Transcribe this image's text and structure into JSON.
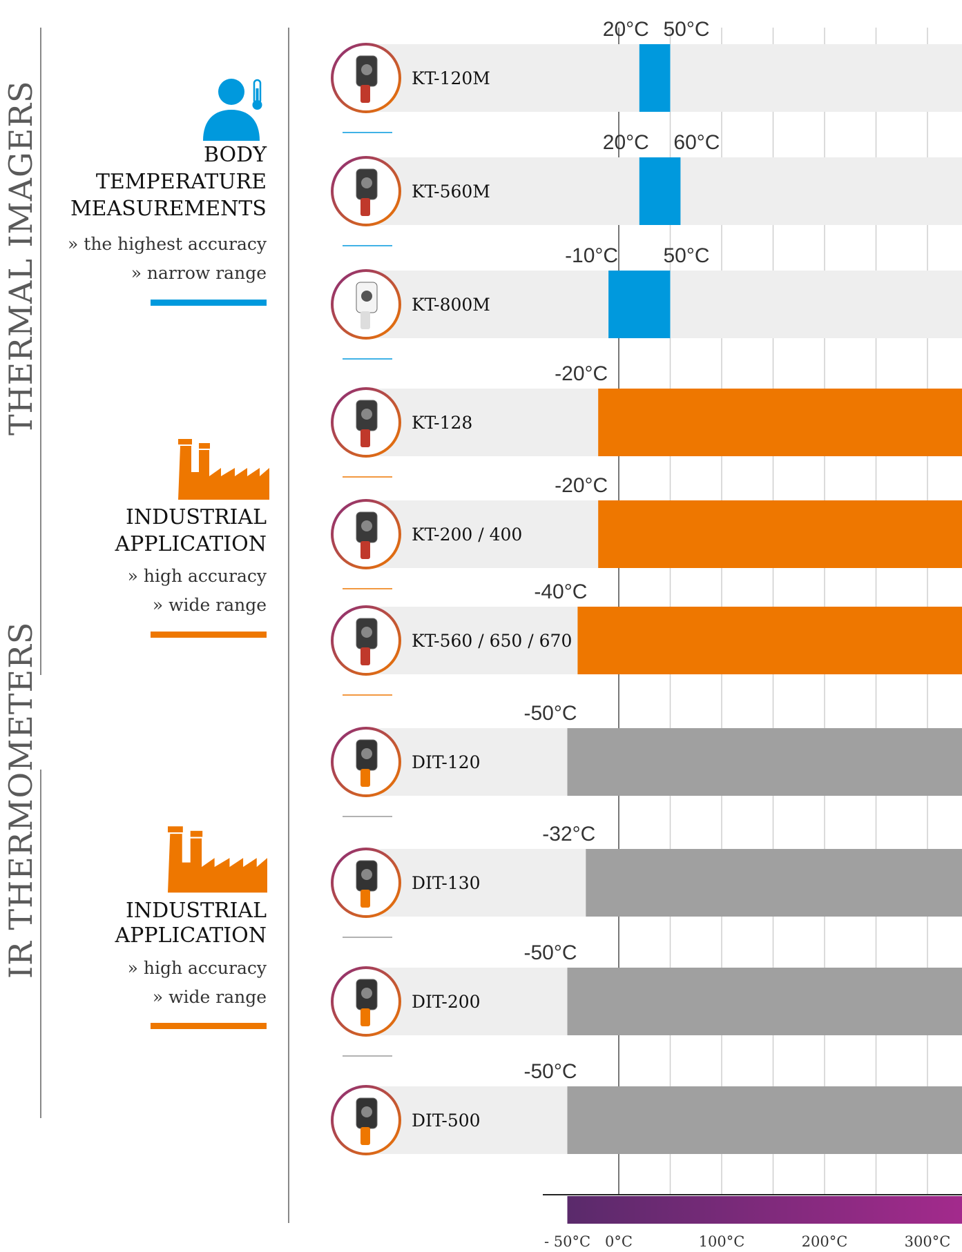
{
  "groups": [
    {
      "title": "THERMAL IMAGERS"
    },
    {
      "title": "IR THERMOMETERS"
    }
  ],
  "sections": [
    {
      "heading": "BODY TEMPERATURE MEASUREMENTS",
      "heading_lines": [
        "BODY",
        "TEMPERATURE",
        "MEASUREMENTS"
      ],
      "bullets": [
        "» the highest accuracy",
        "» narrow range"
      ],
      "icon": "person-thermometer-icon",
      "color": "#0099dd"
    },
    {
      "heading": "INDUSTRIAL APPLICATION",
      "heading_lines": [
        "INDUSTRIAL",
        "APPLICATION"
      ],
      "bullets": [
        "» high accuracy",
        "» wide range"
      ],
      "icon": "factory-icon",
      "color": "#ee7700"
    },
    {
      "heading": "INDUSTRIAL APPLICATION",
      "heading_lines": [
        "INDUSTRIAL",
        "APPLICATION"
      ],
      "bullets": [
        "» high accuracy",
        "» wide range"
      ],
      "icon": "factory-icon",
      "color": "#ee7700"
    }
  ],
  "chart_data": {
    "type": "bar",
    "orientation": "horizontal-range",
    "xlabel": "",
    "xticks": [
      "- 50°C",
      "0°C",
      "100°C",
      "200°C",
      "300°C"
    ],
    "xtick_values": [
      -50,
      0,
      100,
      200,
      300
    ],
    "gridlines": [
      0,
      50,
      100,
      150,
      200,
      250,
      300
    ],
    "grid": true,
    "colors": {
      "body": "#0099dd",
      "industrial": "#ee7700",
      "ir": "#a0a0a0",
      "track": "#eeeeee"
    },
    "categories": [
      "KT-120M",
      "KT-560M",
      "KT-800M",
      "KT-128",
      "KT-200 / 400",
      "KT-560 / 650 / 670",
      "DIT-120",
      "DIT-130",
      "DIT-200",
      "DIT-500"
    ],
    "series": [
      {
        "values": [
          {
            "min": 20,
            "max": 50,
            "min_label": "20°C",
            "max_label": "50°C",
            "color": "#0099dd"
          },
          {
            "min": 20,
            "max": 60,
            "min_label": "20°C",
            "max_label": "60°C",
            "color": "#0099dd"
          },
          {
            "min": -10,
            "max": 50,
            "min_label": "-10°C",
            "max_label": "50°C",
            "color": "#0099dd"
          },
          {
            "min": -20,
            "max": null,
            "min_label": "-20°C",
            "max_label": "",
            "color": "#ee7700"
          },
          {
            "min": -20,
            "max": null,
            "min_label": "-20°C",
            "max_label": "",
            "color": "#ee7700"
          },
          {
            "min": -40,
            "max": null,
            "min_label": "-40°C",
            "max_label": "",
            "color": "#ee7700"
          },
          {
            "min": -50,
            "max": null,
            "min_label": "-50°C",
            "max_label": "",
            "color": "#a0a0a0"
          },
          {
            "min": -32,
            "max": null,
            "min_label": "-32°C",
            "max_label": "",
            "color": "#a0a0a0"
          },
          {
            "min": -50,
            "max": null,
            "min_label": "-50°C",
            "max_label": "",
            "color": "#a0a0a0"
          },
          {
            "min": -50,
            "max": null,
            "min_label": "-50°C",
            "max_label": "",
            "color": "#a0a0a0"
          }
        ]
      }
    ],
    "gradient_scale": {
      "start_color": "#5a2a6b",
      "end_color": "#a32a8c"
    }
  }
}
